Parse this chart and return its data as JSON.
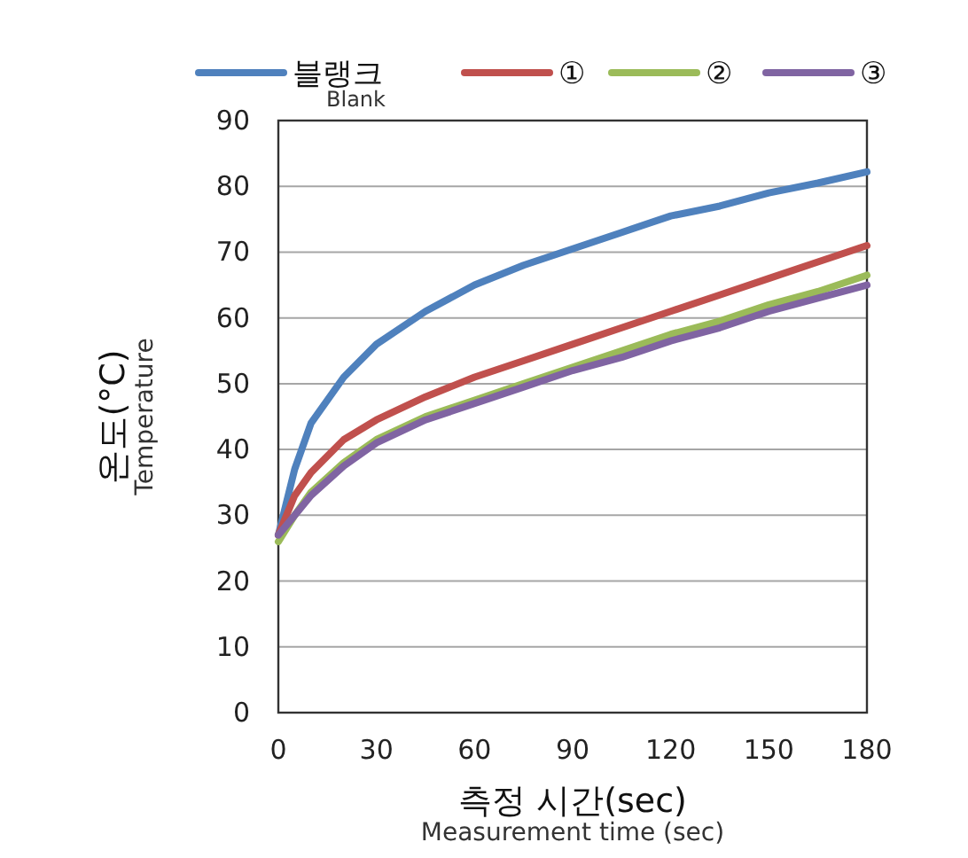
{
  "chart_data": {
    "type": "line",
    "xlabel": "측정 시간(sec)\nMeasurement time (sec)",
    "ylabel": "온도(°C)\nTemperature",
    "xlim": [
      0,
      180
    ],
    "xticks": [
      0,
      30,
      60,
      90,
      120,
      150,
      180
    ],
    "ylim": [
      0,
      90
    ],
    "yticks": [
      0,
      10,
      20,
      30,
      40,
      50,
      60,
      70,
      80,
      90
    ],
    "grid": "y",
    "legend": "top",
    "line_style": "solid",
    "x": [
      0,
      5,
      10,
      20,
      30,
      45,
      60,
      75,
      90,
      105,
      120,
      135,
      150,
      165,
      180
    ],
    "series": [
      {
        "name": "블랭크\nBlank",
        "color": "#4f81bd",
        "values": [
          27,
          37,
          44,
          51,
          56,
          61,
          65,
          68,
          70.5,
          73,
          75.5,
          77,
          79,
          80.5,
          82.2
        ]
      },
      {
        "name": "①",
        "color": "#c0504d",
        "values": [
          27,
          33,
          36.5,
          41.5,
          44.5,
          48,
          51,
          53.5,
          56,
          58.5,
          61,
          63.5,
          66,
          68.5,
          71
        ]
      },
      {
        "name": "②",
        "color": "#9bbb59",
        "values": [
          26,
          30,
          33.5,
          38,
          41.5,
          45,
          47.5,
          50,
          52.5,
          55,
          57.5,
          59.5,
          62,
          64,
          66.5
        ]
      },
      {
        "name": "③",
        "color": "#8064a2",
        "values": [
          27,
          30,
          33,
          37.5,
          41,
          44.5,
          47,
          49.5,
          52,
          54,
          56.5,
          58.5,
          61,
          63,
          65
        ]
      }
    ]
  }
}
